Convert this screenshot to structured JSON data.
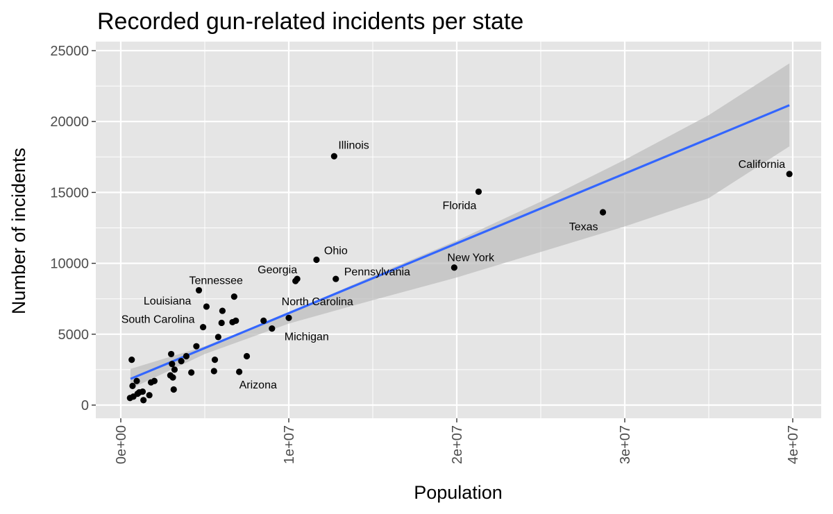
{
  "chart_data": {
    "type": "scatter",
    "title": "Recorded gun-related incidents per state",
    "xlabel": "Population",
    "ylabel": "Number of incidents",
    "xlim": [
      -1300000,
      41900000
    ],
    "ylim": [
      -900000,
      25500
    ],
    "ylim_note": "",
    "x_ticks": [
      0,
      10000000,
      20000000,
      30000000,
      40000000
    ],
    "x_tick_labels": [
      "0e+00",
      "1e+07",
      "2e+07",
      "3e+07",
      "4e+07"
    ],
    "y_ticks": [
      0,
      5000,
      10000,
      15000,
      20000,
      25000
    ],
    "y_tick_labels": [
      "0",
      "5000",
      "10000",
      "15000",
      "20000",
      "25000"
    ],
    "grid": true,
    "colors": {
      "panel": "#e5e5e5",
      "grid": "#ffffff",
      "point": "#000000",
      "fit_line": "#3366ff",
      "ribbon": "#bdbdbd"
    },
    "labeled_points": [
      {
        "label": "Illinois",
        "x": 12700000,
        "y": 17550
      },
      {
        "label": "California",
        "x": 39800000,
        "y": 16300
      },
      {
        "label": "Florida",
        "x": 21300000,
        "y": 15050
      },
      {
        "label": "Texas",
        "x": 28700000,
        "y": 13600
      },
      {
        "label": "Ohio",
        "x": 11650000,
        "y": 10250
      },
      {
        "label": "New York",
        "x": 19850000,
        "y": 9700
      },
      {
        "label": "Georgia",
        "x": 10500000,
        "y": 8900
      },
      {
        "label": "Pennsylvania",
        "x": 12800000,
        "y": 8900
      },
      {
        "label": "Tennessee",
        "x": 4650000,
        "y": 8100
      },
      {
        "label": "North Carolina",
        "x": 10400000,
        "y": 8750
      },
      {
        "label": "Louisiana",
        "x": 5100000,
        "y": 6950
      },
      {
        "label": "South Carolina",
        "x": 4900000,
        "y": 5500
      },
      {
        "label": "Michigan",
        "x": 9000000,
        "y": 5400
      },
      {
        "label": "Arizona",
        "x": 7050000,
        "y": 2350
      }
    ],
    "other_points": [
      {
        "x": 10000000,
        "y": 6150
      },
      {
        "x": 8500000,
        "y": 5950
      },
      {
        "x": 6750000,
        "y": 7650
      },
      {
        "x": 6050000,
        "y": 6650
      },
      {
        "x": 6000000,
        "y": 5800
      },
      {
        "x": 6650000,
        "y": 5850
      },
      {
        "x": 6850000,
        "y": 5950
      },
      {
        "x": 5800000,
        "y": 4800
      },
      {
        "x": 4500000,
        "y": 4150
      },
      {
        "x": 3900000,
        "y": 3450
      },
      {
        "x": 3600000,
        "y": 3100
      },
      {
        "x": 3000000,
        "y": 3600
      },
      {
        "x": 3050000,
        "y": 2900
      },
      {
        "x": 3200000,
        "y": 2500
      },
      {
        "x": 2950000,
        "y": 2100
      },
      {
        "x": 3100000,
        "y": 1950
      },
      {
        "x": 4200000,
        "y": 2300
      },
      {
        "x": 5600000,
        "y": 3200
      },
      {
        "x": 5550000,
        "y": 2400
      },
      {
        "x": 7500000,
        "y": 3450
      },
      {
        "x": 3150000,
        "y": 1100
      },
      {
        "x": 1800000,
        "y": 1600
      },
      {
        "x": 2000000,
        "y": 1700
      },
      {
        "x": 1700000,
        "y": 700
      },
      {
        "x": 1350000,
        "y": 350
      },
      {
        "x": 1300000,
        "y": 950
      },
      {
        "x": 1000000,
        "y": 800
      },
      {
        "x": 750000,
        "y": 600
      },
      {
        "x": 550000,
        "y": 500
      },
      {
        "x": 950000,
        "y": 1700
      },
      {
        "x": 700000,
        "y": 1350
      },
      {
        "x": 650000,
        "y": 3200
      },
      {
        "x": 1100000,
        "y": 900
      }
    ],
    "fit_line": {
      "x": [
        580000,
        39800000
      ],
      "y": [
        1850,
        21150
      ]
    },
    "confidence_band": {
      "x": [
        580000,
        5000000,
        10000000,
        15000000,
        20000000,
        25000000,
        30000000,
        35000000,
        39800000
      ],
      "lower": [
        1150,
        3600,
        5750,
        7400,
        9000,
        10800,
        12600,
        14600,
        18250
      ],
      "upper": [
        2550,
        4150,
        6500,
        9100,
        11600,
        14350,
        17300,
        20450,
        24100
      ]
    }
  }
}
